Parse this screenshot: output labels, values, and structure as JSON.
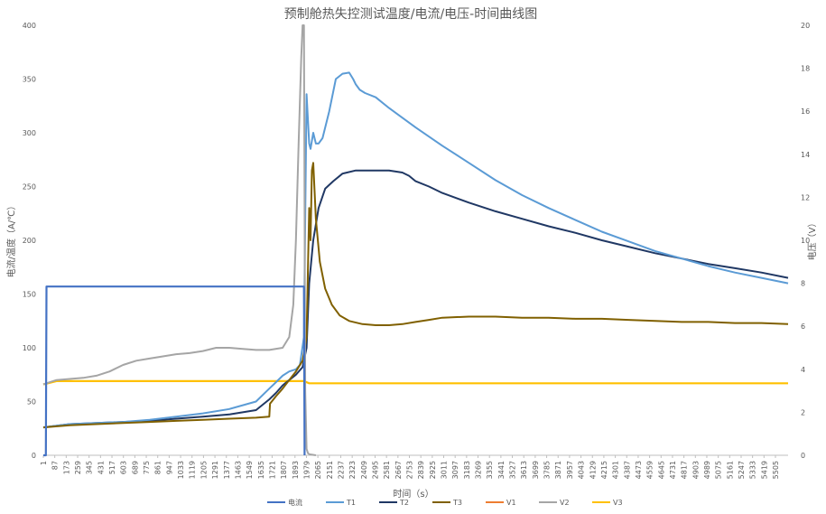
{
  "chart_data": {
    "type": "line",
    "title": "预制舱热失控测试温度/电流/电压-时间曲线图",
    "xlabel": "时间（s）",
    "ylabel_left": "电流/温度（A/℃）",
    "ylabel_right": "电压（V）",
    "x_range": [
      1,
      5600
    ],
    "y_left_range": [
      0,
      400
    ],
    "y_right_range": [
      0,
      20
    ],
    "y_left_ticks": [
      "0",
      "50",
      "100",
      "150",
      "200",
      "250",
      "300",
      "350",
      "400"
    ],
    "y_right_ticks": [
      "0",
      "2",
      "4",
      "6",
      "8",
      "10",
      "12",
      "14",
      "16",
      "18",
      "20"
    ],
    "x_ticks": [
      "1",
      "87",
      "173",
      "259",
      "345",
      "431",
      "517",
      "603",
      "689",
      "775",
      "861",
      "947",
      "1033",
      "1119",
      "1205",
      "1291",
      "1377",
      "1463",
      "1549",
      "1635",
      "1721",
      "1807",
      "1893",
      "1979",
      "2065",
      "2151",
      "2237",
      "2323",
      "2409",
      "2495",
      "2581",
      "2667",
      "2753",
      "2839",
      "2925",
      "3011",
      "3097",
      "3183",
      "3269",
      "3355",
      "3441",
      "3527",
      "3613",
      "3699",
      "3785",
      "3871",
      "3957",
      "4043",
      "4129",
      "4215",
      "4301",
      "4387",
      "4473",
      "4559",
      "4645",
      "4731",
      "4817",
      "4903",
      "4989",
      "5075",
      "5161",
      "5247",
      "5333",
      "5419",
      "5505"
    ],
    "grid": "none",
    "legend_position": "bottom",
    "series": [
      {
        "name": "电流",
        "axis": "left",
        "color": "#4472C4",
        "x": [
          1,
          20,
          25,
          1950,
          1960,
          1965
        ],
        "y": [
          0,
          0,
          157,
          157,
          157,
          0
        ]
      },
      {
        "name": "T1",
        "axis": "left",
        "color": "#5B9BD5",
        "x": [
          1,
          200,
          400,
          600,
          800,
          1000,
          1200,
          1400,
          1600,
          1700,
          1750,
          1800,
          1850,
          1900,
          1930,
          1960,
          1980,
          2000,
          2010,
          2030,
          2050,
          2070,
          2100,
          2150,
          2200,
          2250,
          2300,
          2330,
          2350,
          2380,
          2420,
          2500,
          2600,
          2800,
          3000,
          3200,
          3400,
          3600,
          3800,
          4000,
          4200,
          4400,
          4600,
          4800,
          5000,
          5200,
          5400,
          5600
        ],
        "y": [
          26,
          29,
          30,
          31,
          33,
          36,
          39,
          43,
          50,
          62,
          68,
          74,
          78,
          80,
          84,
          110,
          336,
          290,
          285,
          300,
          290,
          290,
          295,
          320,
          350,
          355,
          356,
          350,
          345,
          340,
          337,
          333,
          323,
          305,
          288,
          272,
          256,
          242,
          230,
          219,
          208,
          199,
          190,
          183,
          176,
          170,
          165,
          160
        ]
      },
      {
        "name": "T2",
        "axis": "left",
        "color": "#203864",
        "x": [
          1,
          200,
          400,
          600,
          800,
          1000,
          1200,
          1400,
          1600,
          1700,
          1750,
          1800,
          1850,
          1900,
          1950,
          1980,
          2000,
          2030,
          2070,
          2120,
          2180,
          2250,
          2350,
          2450,
          2600,
          2700,
          2750,
          2800,
          2900,
          3000,
          3200,
          3400,
          3600,
          3800,
          4000,
          4200,
          4400,
          4600,
          4800,
          5000,
          5200,
          5400,
          5600
        ],
        "y": [
          26,
          29,
          30,
          31,
          32,
          34,
          36,
          38,
          42,
          52,
          58,
          65,
          70,
          75,
          82,
          100,
          160,
          200,
          230,
          248,
          255,
          262,
          265,
          265,
          265,
          263,
          260,
          255,
          250,
          244,
          235,
          227,
          220,
          213,
          207,
          200,
          194,
          188,
          183,
          178,
          174,
          170,
          165
        ]
      },
      {
        "name": "T3",
        "axis": "left",
        "color": "#806000",
        "x": [
          1,
          200,
          400,
          600,
          800,
          1000,
          1200,
          1400,
          1600,
          1700,
          1705,
          1750,
          1800,
          1850,
          1900,
          1950,
          1980,
          2000,
          2010,
          2020,
          2030,
          2050,
          2080,
          2120,
          2170,
          2230,
          2300,
          2400,
          2500,
          2600,
          2700,
          2800,
          2900,
          3000,
          3200,
          3400,
          3600,
          3800,
          4000,
          4200,
          4400,
          4600,
          4800,
          5000,
          5200,
          5400,
          5600
        ],
        "y": [
          26,
          28,
          29,
          30,
          31,
          32,
          33,
          34,
          35,
          36,
          48,
          55,
          62,
          70,
          78,
          88,
          110,
          230,
          200,
          265,
          272,
          220,
          180,
          155,
          140,
          130,
          125,
          122,
          121,
          121,
          122,
          124,
          126,
          128,
          129,
          129,
          128,
          128,
          127,
          127,
          126,
          125,
          124,
          124,
          123,
          123,
          122
        ]
      },
      {
        "name": "V1",
        "axis": "right",
        "color": "#ED7D31",
        "x": [],
        "y": []
      },
      {
        "name": "V2",
        "axis": "right",
        "color": "#A5A5A5",
        "x": [
          1,
          50,
          100,
          200,
          300,
          400,
          500,
          600,
          700,
          800,
          900,
          1000,
          1100,
          1200,
          1300,
          1400,
          1500,
          1600,
          1700,
          1800,
          1850,
          1880,
          1900,
          1920,
          1940,
          1950,
          1960,
          1970,
          1980,
          1990,
          2000,
          2050
        ],
        "y": [
          3.3,
          3.4,
          3.5,
          3.55,
          3.6,
          3.7,
          3.9,
          4.2,
          4.4,
          4.5,
          4.6,
          4.7,
          4.75,
          4.85,
          5.0,
          5.0,
          4.95,
          4.9,
          4.9,
          5.0,
          5.5,
          7.0,
          10.0,
          14.5,
          18.5,
          20.0,
          20.0,
          3.0,
          0.3,
          0.1,
          0.05,
          0.0
        ]
      },
      {
        "name": "V3",
        "axis": "right",
        "color": "#FFC000",
        "x": [
          1,
          100,
          500,
          1000,
          1500,
          1900,
          1960,
          2000,
          2100,
          3000,
          4000,
          5000,
          5600
        ],
        "y": [
          3.3,
          3.45,
          3.45,
          3.45,
          3.45,
          3.45,
          3.45,
          3.35,
          3.35,
          3.35,
          3.35,
          3.35,
          3.35
        ]
      }
    ]
  }
}
